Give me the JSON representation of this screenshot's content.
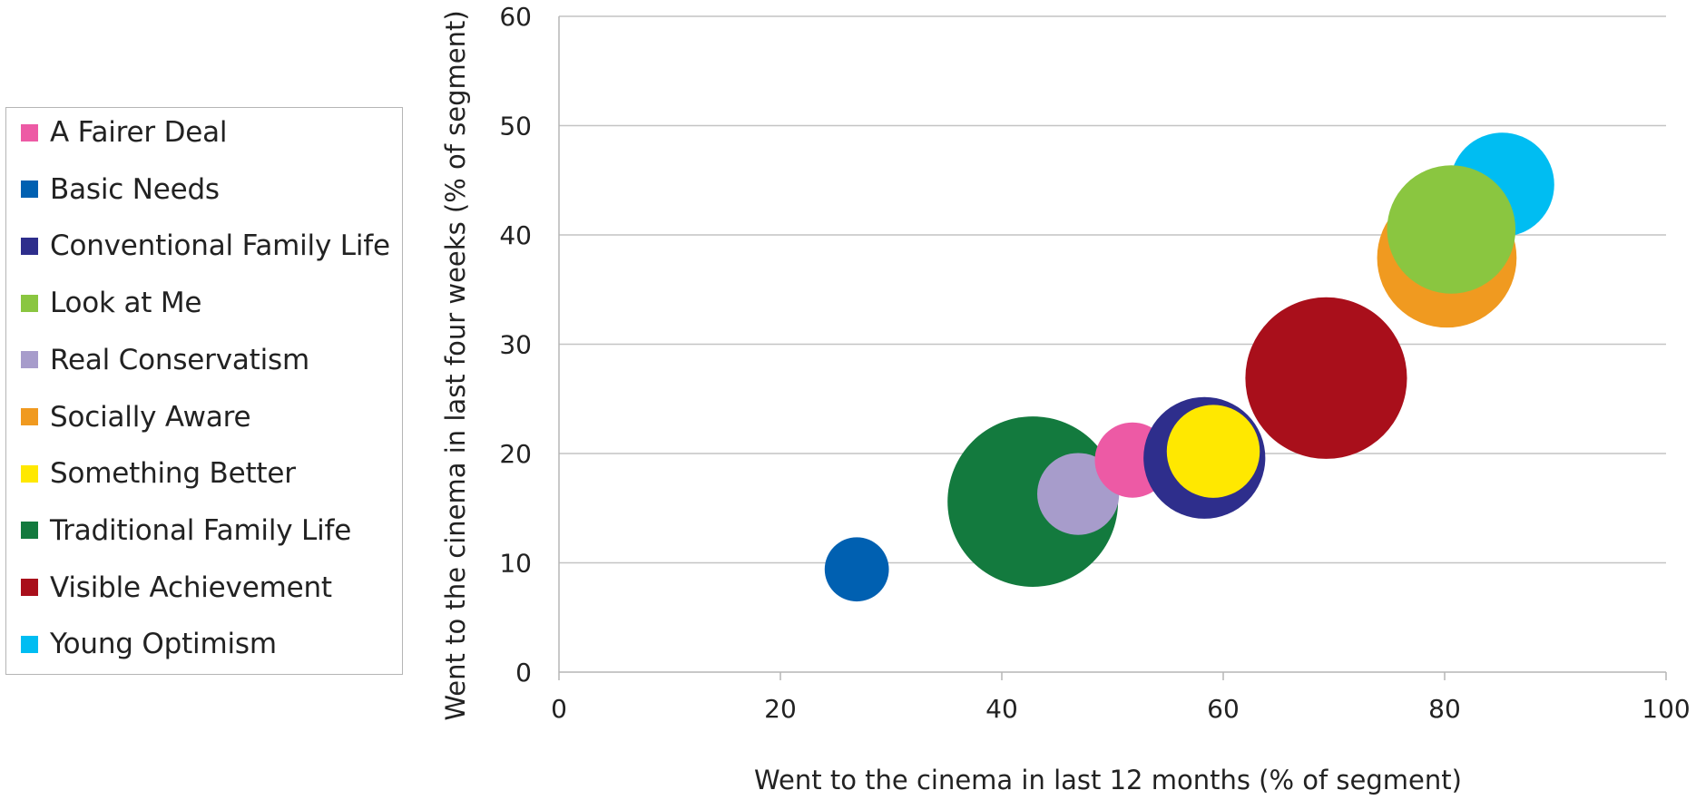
{
  "chart_data": {
    "type": "scatter",
    "title": "",
    "xlabel": "Went to the cinema in last 12 months (% of segment)",
    "ylabel": "Went to the cinema in last four weeks (% of segment)",
    "xlim": [
      0,
      100
    ],
    "ylim": [
      0,
      60
    ],
    "xticks": [
      0,
      20,
      40,
      60,
      80,
      100
    ],
    "yticks": [
      0,
      10,
      20,
      30,
      40,
      50,
      60
    ],
    "grid": "horizontal",
    "legend_position": "left",
    "series": [
      {
        "name": "A Fairer Deal",
        "color": "#ed5aa5",
        "x": 51.8,
        "y": 19.4,
        "size": 3.4
      },
      {
        "name": "Basic Needs",
        "color": "#0060b1",
        "x": 26.9,
        "y": 9.4,
        "size": 2.9
      },
      {
        "name": "Conventional Family Life",
        "color": "#2e2e8c",
        "x": 58.3,
        "y": 19.6,
        "size": 5.5
      },
      {
        "name": "Look at Me",
        "color": "#8ac640",
        "x": 80.6,
        "y": 40.5,
        "size": 5.8
      },
      {
        "name": "Real Conservatism",
        "color": "#a79ccb",
        "x": 46.9,
        "y": 16.3,
        "size": 3.7
      },
      {
        "name": "Socially Aware",
        "color": "#f09a20",
        "x": 80.2,
        "y": 37.9,
        "size": 6.3
      },
      {
        "name": "Something Better",
        "color": "#ffe800",
        "x": 59.1,
        "y": 20.2,
        "size": 4.2
      },
      {
        "name": "Traditional Family Life",
        "color": "#137a3e",
        "x": 42.8,
        "y": 15.6,
        "size": 7.7
      },
      {
        "name": "Visible Achievement",
        "color": "#a90f1b",
        "x": 69.3,
        "y": 26.9,
        "size": 7.3
      },
      {
        "name": "Young Optimism",
        "color": "#00bdf2",
        "x": 85.2,
        "y": 44.6,
        "size": 4.7
      }
    ],
    "draw_order": [
      "Basic Needs",
      "Traditional Family Life",
      "Real Conservatism",
      "A Fairer Deal",
      "Conventional Family Life",
      "Something Better",
      "Visible Achievement",
      "Socially Aware",
      "Young Optimism",
      "Look at Me"
    ]
  }
}
